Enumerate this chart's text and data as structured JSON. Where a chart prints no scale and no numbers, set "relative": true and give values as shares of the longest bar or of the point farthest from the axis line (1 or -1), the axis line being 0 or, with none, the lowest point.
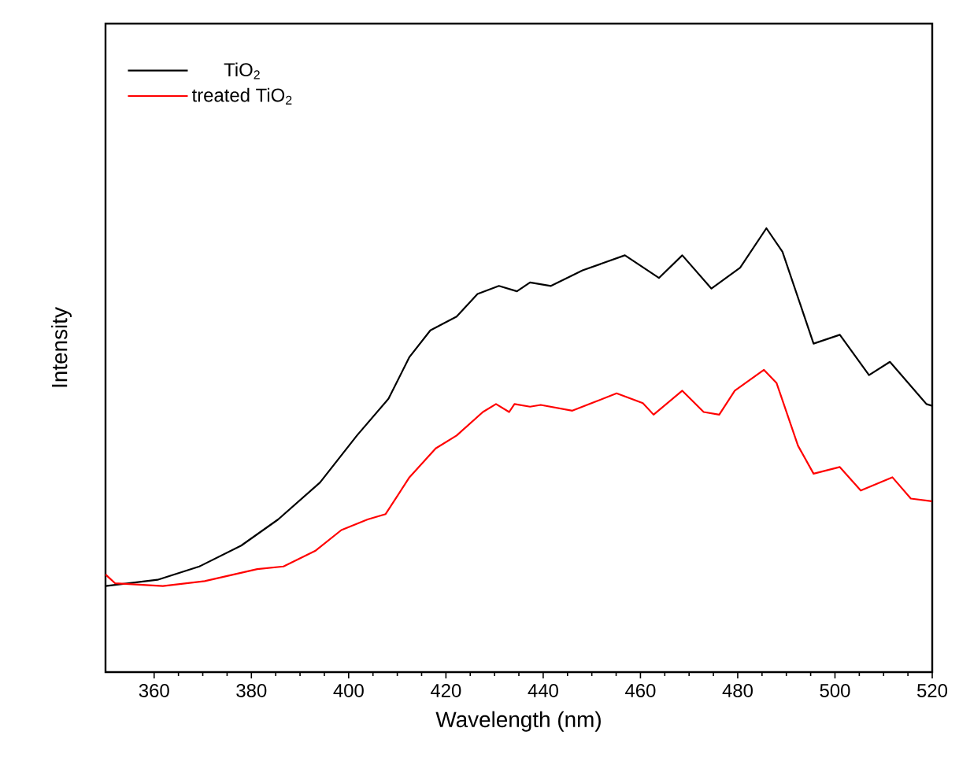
{
  "chart_data": {
    "type": "line",
    "relative": true,
    "xlabel": "Wavelength (nm)",
    "ylabel": "Intensity",
    "xlim": [
      350,
      520
    ],
    "xticks": [
      360,
      380,
      400,
      420,
      440,
      460,
      480,
      500,
      520
    ],
    "legend": "top left",
    "marker": "none",
    "line_style": "solid",
    "series": [
      {
        "name": "TiO$_{2}$",
        "color": "#000000",
        "x": [
          350,
          360.7,
          369.3,
          377.9,
          385.5,
          394.1,
          401.7,
          408.2,
          412.5,
          416.8,
          422.2,
          426.5,
          430.9,
          434.6,
          437.3,
          441.6,
          448.1,
          456.8,
          463.8,
          468.6,
          474.6,
          480.5,
          485.9,
          489.2,
          495.6,
          501.0,
          507.0,
          511.3,
          518.8,
          520
        ],
        "values": [
          0.194,
          0.208,
          0.238,
          0.285,
          0.344,
          0.427,
          0.533,
          0.616,
          0.71,
          0.77,
          0.801,
          0.852,
          0.87,
          0.858,
          0.878,
          0.87,
          0.905,
          0.939,
          0.888,
          0.939,
          0.864,
          0.911,
          1.0,
          0.947,
          0.74,
          0.76,
          0.669,
          0.699,
          0.604,
          0.6
        ]
      },
      {
        "name": "treated TiO$_{2}$",
        "color": "#ff0000",
        "x": [
          350,
          352.0,
          361.8,
          370.4,
          381.2,
          386.6,
          393.1,
          398.5,
          403.9,
          407.6,
          412.5,
          417.9,
          422.2,
          427.6,
          430.3,
          433.0,
          434.1,
          437.3,
          439.5,
          446.0,
          455.1,
          460.5,
          462.7,
          468.6,
          473.0,
          476.2,
          479.4,
          485.4,
          488.0,
          492.4,
          495.6,
          501.0,
          505.3,
          511.8,
          515.6,
          519.9
        ],
        "values": [
          0.22,
          0.2,
          0.194,
          0.205,
          0.232,
          0.238,
          0.273,
          0.32,
          0.344,
          0.356,
          0.439,
          0.504,
          0.533,
          0.586,
          0.604,
          0.586,
          0.604,
          0.598,
          0.602,
          0.589,
          0.628,
          0.606,
          0.58,
          0.634,
          0.586,
          0.58,
          0.634,
          0.681,
          0.651,
          0.51,
          0.447,
          0.462,
          0.409,
          0.439,
          0.391,
          0.385
        ]
      }
    ]
  }
}
